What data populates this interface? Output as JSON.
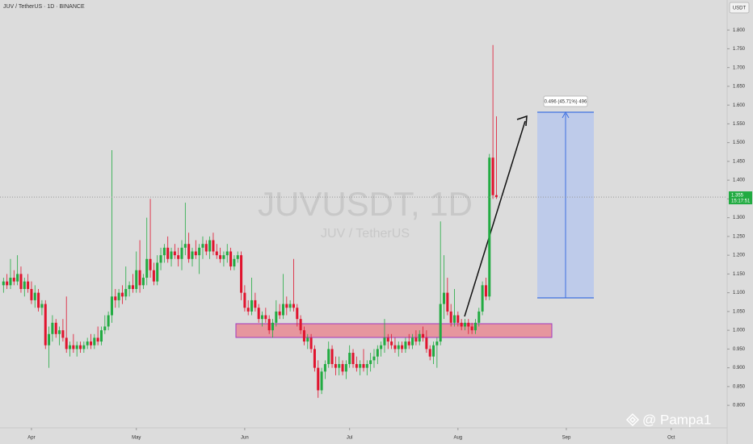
{
  "header": {
    "title": "JUV / TetherUS · 1D · BINANCE",
    "currency": "USDT",
    "author": "@ Pampa1"
  },
  "chart_data": {
    "type": "candlestick",
    "watermark": "JUVUSDT, 1D",
    "watermark_sub": "JUV / TetherUS",
    "measure_label": "0.496 (45.71%) 496",
    "last_price": 1.355,
    "countdown": "15:17:51",
    "up_color": "#22ab42",
    "down_color": "#e0142e",
    "xlim": [
      -1,
      207
    ],
    "xticks": [
      {
        "value": 8,
        "label": "Apr"
      },
      {
        "value": 38,
        "label": "May"
      },
      {
        "value": 69,
        "label": "Jun"
      },
      {
        "value": 99,
        "label": "Jul"
      },
      {
        "value": 130,
        "label": "Aug"
      },
      {
        "value": 161,
        "label": "Sep"
      },
      {
        "value": 191,
        "label": "Oct"
      }
    ],
    "ylim": [
      0.74,
      1.88
    ],
    "yticks": [
      {
        "value": 0.8,
        "label": "0.800"
      },
      {
        "value": 0.85,
        "label": "0.850"
      },
      {
        "value": 0.9,
        "label": "0.900"
      },
      {
        "value": 0.95,
        "label": "0.950"
      },
      {
        "value": 1.0,
        "label": "1.000"
      },
      {
        "value": 1.05,
        "label": "1.050"
      },
      {
        "value": 1.1,
        "label": "1.100"
      },
      {
        "value": 1.15,
        "label": "1.150"
      },
      {
        "value": 1.2,
        "label": "1.200"
      },
      {
        "value": 1.25,
        "label": "1.250"
      },
      {
        "value": 1.3,
        "label": "1.300"
      },
      {
        "value": 1.35,
        "label": "1.350"
      },
      {
        "value": 1.4,
        "label": "1.400"
      },
      {
        "value": 1.45,
        "label": "1.450"
      },
      {
        "value": 1.5,
        "label": "1.500"
      },
      {
        "value": 1.55,
        "label": "1.550"
      },
      {
        "value": 1.6,
        "label": "1.600"
      },
      {
        "value": 1.65,
        "label": "1.650"
      },
      {
        "value": 1.7,
        "label": "1.700"
      },
      {
        "value": 1.75,
        "label": "1.750"
      },
      {
        "value": 1.8,
        "label": "1.800"
      }
    ],
    "ohlc": [
      [
        1.12,
        1.14,
        1.1,
        1.13
      ],
      [
        1.13,
        1.15,
        1.11,
        1.12
      ],
      [
        1.12,
        1.19,
        1.11,
        1.14
      ],
      [
        1.14,
        1.16,
        1.12,
        1.13
      ],
      [
        1.13,
        1.2,
        1.12,
        1.15
      ],
      [
        1.15,
        1.17,
        1.1,
        1.11
      ],
      [
        1.11,
        1.14,
        1.09,
        1.13
      ],
      [
        1.13,
        1.15,
        1.1,
        1.11
      ],
      [
        1.11,
        1.13,
        1.07,
        1.08
      ],
      [
        1.08,
        1.12,
        1.06,
        1.1
      ],
      [
        1.1,
        1.11,
        1.05,
        1.06
      ],
      [
        1.06,
        1.08,
        1.04,
        1.07
      ],
      [
        1.07,
        1.08,
        0.95,
        0.96
      ],
      [
        0.96,
        1.01,
        0.9,
        0.99
      ],
      [
        0.99,
        1.04,
        0.97,
        1.02
      ],
      [
        1.02,
        1.03,
        0.98,
        0.99
      ],
      [
        0.99,
        1.01,
        0.96,
        1.0
      ],
      [
        1.0,
        1.03,
        0.97,
        0.98
      ],
      [
        0.98,
        1.09,
        0.94,
        0.95
      ],
      [
        0.95,
        0.97,
        0.93,
        0.96
      ],
      [
        0.96,
        0.99,
        0.94,
        0.95
      ],
      [
        0.95,
        0.97,
        0.93,
        0.96
      ],
      [
        0.96,
        0.97,
        0.94,
        0.95
      ],
      [
        0.95,
        0.97,
        0.94,
        0.96
      ],
      [
        0.96,
        0.98,
        0.95,
        0.97
      ],
      [
        0.97,
        0.99,
        0.95,
        0.96
      ],
      [
        0.96,
        0.99,
        0.95,
        0.98
      ],
      [
        0.98,
        1.01,
        0.96,
        0.97
      ],
      [
        0.97,
        1.01,
        0.96,
        1.0
      ],
      [
        1.0,
        1.04,
        0.99,
        1.01
      ],
      [
        1.01,
        1.05,
        1.0,
        1.04
      ],
      [
        1.04,
        1.48,
        1.02,
        1.09
      ],
      [
        1.09,
        1.11,
        1.06,
        1.08
      ],
      [
        1.08,
        1.11,
        1.06,
        1.1
      ],
      [
        1.1,
        1.12,
        1.07,
        1.09
      ],
      [
        1.09,
        1.17,
        1.08,
        1.11
      ],
      [
        1.11,
        1.13,
        1.09,
        1.12
      ],
      [
        1.12,
        1.15,
        1.1,
        1.11
      ],
      [
        1.11,
        1.21,
        1.1,
        1.16
      ],
      [
        1.16,
        1.24,
        1.1,
        1.12
      ],
      [
        1.12,
        1.15,
        1.11,
        1.14
      ],
      [
        1.14,
        1.3,
        1.12,
        1.19
      ],
      [
        1.19,
        1.35,
        1.14,
        1.16
      ],
      [
        1.16,
        1.18,
        1.12,
        1.13
      ],
      [
        1.13,
        1.2,
        1.12,
        1.18
      ],
      [
        1.18,
        1.22,
        1.16,
        1.2
      ],
      [
        1.2,
        1.23,
        1.18,
        1.22
      ],
      [
        1.22,
        1.25,
        1.18,
        1.19
      ],
      [
        1.19,
        1.22,
        1.17,
        1.21
      ],
      [
        1.21,
        1.23,
        1.19,
        1.2
      ],
      [
        1.2,
        1.22,
        1.17,
        1.19
      ],
      [
        1.19,
        1.24,
        1.16,
        1.22
      ],
      [
        1.22,
        1.34,
        1.2,
        1.23
      ],
      [
        1.23,
        1.26,
        1.18,
        1.19
      ],
      [
        1.19,
        1.22,
        1.17,
        1.21
      ],
      [
        1.21,
        1.24,
        1.19,
        1.2
      ],
      [
        1.2,
        1.23,
        1.15,
        1.22
      ],
      [
        1.22,
        1.25,
        1.19,
        1.23
      ],
      [
        1.23,
        1.24,
        1.2,
        1.21
      ],
      [
        1.21,
        1.25,
        1.19,
        1.24
      ],
      [
        1.24,
        1.26,
        1.2,
        1.21
      ],
      [
        1.21,
        1.23,
        1.19,
        1.2
      ],
      [
        1.2,
        1.22,
        1.18,
        1.19
      ],
      [
        1.19,
        1.21,
        1.17,
        1.2
      ],
      [
        1.2,
        1.23,
        1.18,
        1.21
      ],
      [
        1.21,
        1.22,
        1.16,
        1.17
      ],
      [
        1.17,
        1.2,
        1.16,
        1.19
      ],
      [
        1.19,
        1.21,
        1.18,
        1.2
      ],
      [
        1.2,
        1.21,
        1.08,
        1.1
      ],
      [
        1.1,
        1.12,
        1.05,
        1.06
      ],
      [
        1.06,
        1.08,
        1.04,
        1.05
      ],
      [
        1.05,
        1.14,
        1.04,
        1.08
      ],
      [
        1.08,
        1.1,
        1.05,
        1.06
      ],
      [
        1.06,
        1.07,
        1.02,
        1.03
      ],
      [
        1.03,
        1.05,
        1.01,
        1.04
      ],
      [
        1.04,
        1.06,
        1.02,
        1.03
      ],
      [
        1.03,
        1.04,
        0.99,
        1.0
      ],
      [
        1.0,
        1.03,
        0.98,
        1.02
      ],
      [
        1.02,
        1.08,
        1.01,
        1.05
      ],
      [
        1.05,
        1.07,
        1.03,
        1.04
      ],
      [
        1.04,
        1.15,
        1.03,
        1.07
      ],
      [
        1.07,
        1.09,
        1.04,
        1.06
      ],
      [
        1.06,
        1.08,
        1.05,
        1.07
      ],
      [
        1.07,
        1.19,
        1.05,
        1.06
      ],
      [
        1.06,
        1.07,
        1.01,
        1.03
      ],
      [
        1.03,
        1.04,
        0.99,
        1.0
      ],
      [
        1.0,
        1.01,
        0.96,
        0.97
      ],
      [
        0.97,
        0.99,
        0.95,
        0.98
      ],
      [
        0.98,
        0.99,
        0.94,
        0.95
      ],
      [
        0.95,
        0.96,
        0.89,
        0.9
      ],
      [
        0.9,
        0.92,
        0.82,
        0.84
      ],
      [
        0.84,
        0.9,
        0.83,
        0.89
      ],
      [
        0.89,
        0.92,
        0.87,
        0.91
      ],
      [
        0.91,
        0.97,
        0.9,
        0.95
      ],
      [
        0.95,
        0.96,
        0.9,
        0.91
      ],
      [
        0.91,
        0.93,
        0.88,
        0.9
      ],
      [
        0.9,
        0.93,
        0.88,
        0.91
      ],
      [
        0.91,
        0.92,
        0.88,
        0.89
      ],
      [
        0.89,
        0.92,
        0.87,
        0.91
      ],
      [
        0.91,
        0.96,
        0.9,
        0.94
      ],
      [
        0.94,
        0.95,
        0.9,
        0.91
      ],
      [
        0.91,
        0.93,
        0.89,
        0.9
      ],
      [
        0.9,
        0.92,
        0.88,
        0.91
      ],
      [
        0.91,
        0.95,
        0.89,
        0.9
      ],
      [
        0.9,
        0.92,
        0.88,
        0.91
      ],
      [
        0.91,
        0.94,
        0.89,
        0.92
      ],
      [
        0.92,
        0.95,
        0.9,
        0.93
      ],
      [
        0.93,
        0.96,
        0.91,
        0.95
      ],
      [
        0.95,
        0.97,
        0.93,
        0.96
      ],
      [
        0.96,
        1.03,
        0.94,
        0.98
      ],
      [
        0.98,
        0.99,
        0.95,
        0.97
      ],
      [
        0.97,
        0.99,
        0.95,
        0.96
      ],
      [
        0.96,
        0.98,
        0.94,
        0.95
      ],
      [
        0.95,
        0.97,
        0.93,
        0.96
      ],
      [
        0.96,
        0.97,
        0.94,
        0.95
      ],
      [
        0.95,
        0.98,
        0.94,
        0.97
      ],
      [
        0.97,
        0.99,
        0.95,
        0.96
      ],
      [
        0.96,
        0.99,
        0.95,
        0.98
      ],
      [
        0.98,
        1.0,
        0.96,
        0.97
      ],
      [
        0.97,
        1.0,
        0.96,
        0.99
      ],
      [
        0.99,
        1.01,
        0.97,
        0.98
      ],
      [
        0.98,
        1.0,
        0.94,
        0.95
      ],
      [
        0.95,
        0.96,
        0.92,
        0.93
      ],
      [
        0.93,
        0.97,
        0.91,
        0.96
      ],
      [
        0.96,
        0.98,
        0.9,
        0.97
      ],
      [
        0.97,
        1.29,
        0.96,
        1.07
      ],
      [
        1.07,
        1.2,
        1.03,
        1.1
      ],
      [
        1.1,
        1.14,
        1.04,
        1.05
      ],
      [
        1.05,
        1.07,
        1.01,
        1.02
      ],
      [
        1.02,
        1.11,
        1.01,
        1.04
      ],
      [
        1.04,
        1.05,
        1.01,
        1.02
      ],
      [
        1.02,
        1.03,
        1.0,
        1.01
      ],
      [
        1.01,
        1.03,
        1.0,
        1.02
      ],
      [
        1.02,
        1.03,
        0.99,
        1.01
      ],
      [
        1.01,
        1.02,
        0.99,
        1.0
      ],
      [
        1.0,
        1.03,
        0.99,
        1.02
      ],
      [
        1.02,
        1.06,
        1.01,
        1.05
      ],
      [
        1.05,
        1.13,
        1.04,
        1.12
      ],
      [
        1.12,
        1.14,
        1.08,
        1.09
      ],
      [
        1.09,
        1.47,
        1.08,
        1.46
      ],
      [
        1.46,
        1.76,
        1.35,
        1.36
      ],
      [
        1.36,
        1.57,
        1.35,
        1.355
      ]
    ]
  }
}
